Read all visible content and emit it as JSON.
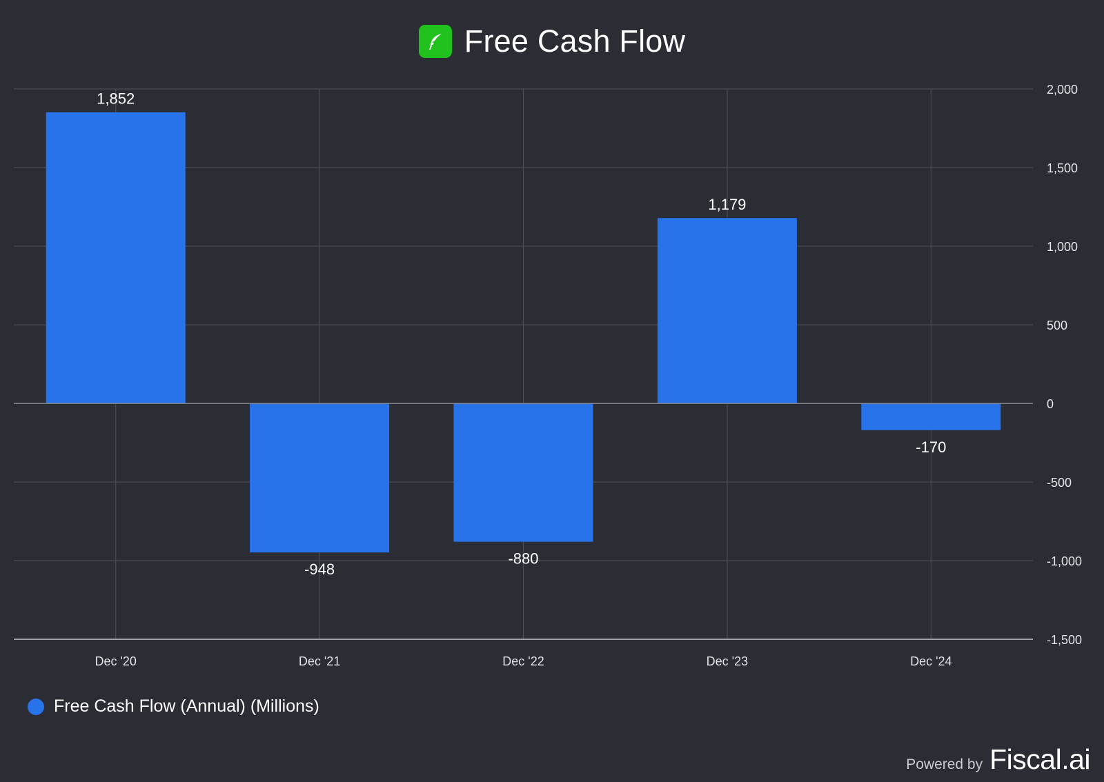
{
  "header": {
    "title": "Free Cash Flow",
    "logo_icon": "feather-icon",
    "logo_color": "#21c21d"
  },
  "chart_data": {
    "type": "bar",
    "categories": [
      "Dec '20",
      "Dec '21",
      "Dec '22",
      "Dec '23",
      "Dec '24"
    ],
    "series": [
      {
        "name": "Free Cash Flow (Annual) (Millions)",
        "values": [
          1852,
          -948,
          -880,
          1179,
          -170
        ],
        "labels": [
          "1,852",
          "-948",
          "-880",
          "1,179",
          "-170"
        ],
        "color": "#2872ea"
      }
    ],
    "y_ticks": [
      2000,
      1500,
      1000,
      500,
      0,
      -500,
      -1000,
      -1500
    ],
    "y_tick_labels": [
      "2,000",
      "1,500",
      "1,000",
      "500",
      "0",
      "-500",
      "-1,000",
      "-1,500"
    ],
    "ylim": [
      -1500,
      2000
    ],
    "y_axis_side": "right",
    "grid": true,
    "legend_position": "bottom-left",
    "title": "Free Cash Flow",
    "xlabel": "",
    "ylabel": ""
  },
  "legend": {
    "label": "Free Cash Flow (Annual) (Millions)",
    "color": "#2872ea"
  },
  "footer": {
    "powered_by": "Powered by",
    "brand": "Fiscal.ai"
  }
}
